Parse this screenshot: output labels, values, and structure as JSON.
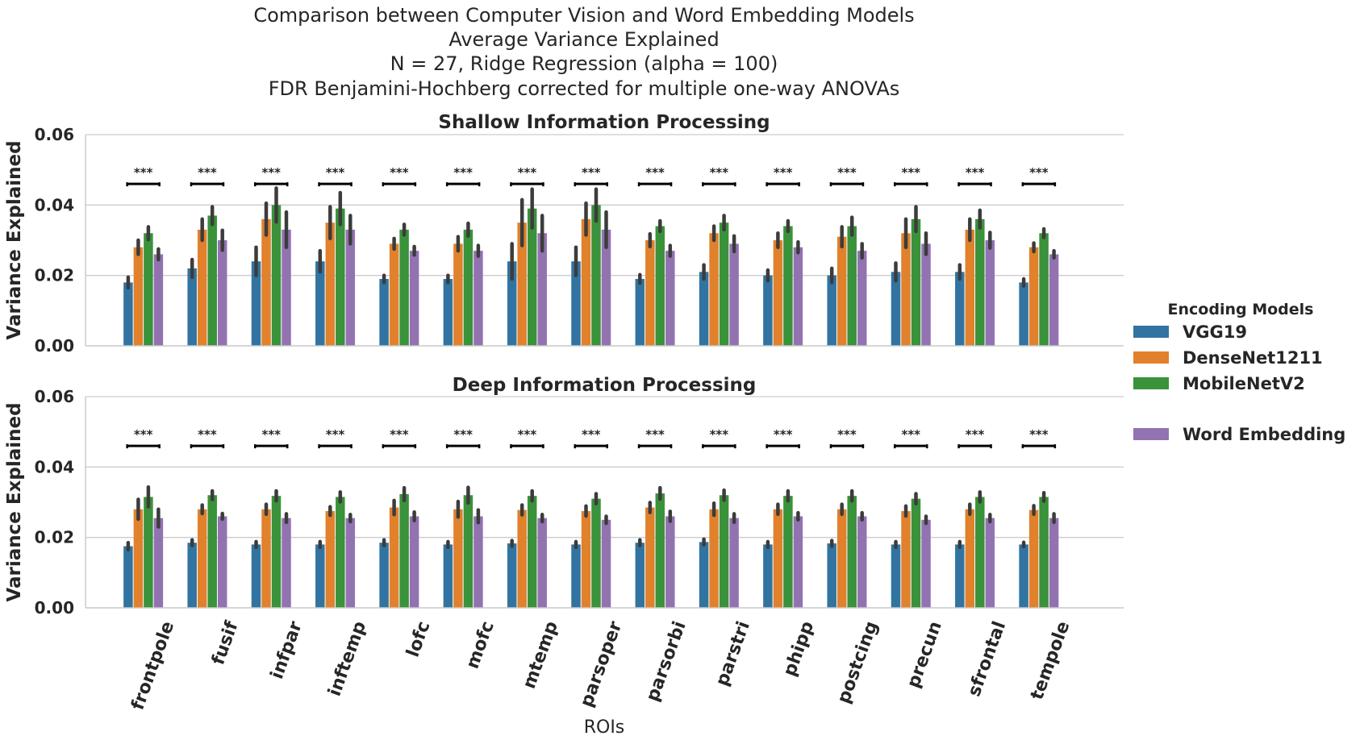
{
  "chart_data": {
    "type": "bar",
    "suptitle": [
      "Comparison between Computer Vision and Word Embedding Models",
      "Average Variance Explained",
      "N = 27, Ridge Regression (alpha = 100)",
      "FDR Benjamini-Hochberg corrected for multiple one-way ANOVAs"
    ],
    "xlabel": "ROIs",
    "ylabel": "Variance Explained",
    "ylim": [
      0,
      0.06
    ],
    "yticks": [
      "0.00",
      "0.02",
      "0.04",
      "0.06"
    ],
    "grid": true,
    "legend_placement": "right",
    "legend_title": "Encoding Models",
    "categories": [
      "frontpole",
      "fusif",
      "infpar",
      "inftemp",
      "lofc",
      "mofc",
      "mtemp",
      "parsoper",
      "parsorbi",
      "parstri",
      "phipp",
      "postcing",
      "precun",
      "sfrontal",
      "tempole"
    ],
    "series_names": [
      "VGG19",
      "DenseNet1211",
      "MobileNetV2",
      "Word Embedding"
    ],
    "series_colors": [
      "#3174a1",
      "#e1812c",
      "#3a923a",
      "#9372b2"
    ],
    "significance_label": "***",
    "significance_y": 0.046,
    "panels": [
      {
        "title": "Shallow Information Processing",
        "series": [
          {
            "name": "VGG19",
            "values": [
              0.018,
              0.022,
              0.024,
              0.024,
              0.019,
              0.019,
              0.024,
              0.024,
              0.019,
              0.021,
              0.02,
              0.02,
              0.021,
              0.021,
              0.018
            ],
            "err": [
              0.0015,
              0.0025,
              0.004,
              0.003,
              0.001,
              0.001,
              0.005,
              0.004,
              0.0012,
              0.002,
              0.0015,
              0.002,
              0.0025,
              0.002,
              0.001
            ]
          },
          {
            "name": "DenseNet1211",
            "values": [
              0.028,
              0.033,
              0.036,
              0.035,
              0.029,
              0.029,
              0.035,
              0.036,
              0.03,
              0.032,
              0.03,
              0.031,
              0.032,
              0.033,
              0.028
            ],
            "err": [
              0.002,
              0.003,
              0.0045,
              0.0045,
              0.0015,
              0.002,
              0.0065,
              0.0045,
              0.0018,
              0.002,
              0.002,
              0.0028,
              0.004,
              0.003,
              0.0012
            ]
          },
          {
            "name": "MobileNetV2",
            "values": [
              0.032,
              0.037,
              0.04,
              0.039,
              0.033,
              0.033,
              0.039,
              0.04,
              0.034,
              0.035,
              0.034,
              0.034,
              0.036,
              0.036,
              0.032
            ],
            "err": [
              0.0018,
              0.0025,
              0.0048,
              0.0045,
              0.0015,
              0.0018,
              0.0055,
              0.0045,
              0.0015,
              0.002,
              0.0015,
              0.0025,
              0.0035,
              0.0025,
              0.0012
            ]
          },
          {
            "name": "Word Embedding",
            "values": [
              0.026,
              0.03,
              0.033,
              0.033,
              0.027,
              0.027,
              0.032,
              0.033,
              0.027,
              0.029,
              0.028,
              0.027,
              0.029,
              0.03,
              0.026
            ],
            "err": [
              0.0015,
              0.0028,
              0.005,
              0.004,
              0.0012,
              0.0015,
              0.005,
              0.005,
              0.0015,
              0.0022,
              0.0015,
              0.002,
              0.003,
              0.0022,
              0.001
            ]
          }
        ]
      },
      {
        "title": "Deep Information Processing",
        "series": [
          {
            "name": "VGG19",
            "values": [
              0.0175,
              0.0185,
              0.018,
              0.018,
              0.0185,
              0.018,
              0.0183,
              0.018,
              0.0185,
              0.0187,
              0.018,
              0.0183,
              0.018,
              0.018,
              0.018
            ],
            "err": [
              0.001,
              0.0008,
              0.0008,
              0.0008,
              0.0008,
              0.0008,
              0.0008,
              0.0008,
              0.0008,
              0.0008,
              0.0008,
              0.0008,
              0.0008,
              0.0008,
              0.0006
            ]
          },
          {
            "name": "DenseNet1211",
            "values": [
              0.028,
              0.028,
              0.028,
              0.0275,
              0.0285,
              0.028,
              0.0278,
              0.0275,
              0.0285,
              0.028,
              0.028,
              0.028,
              0.0275,
              0.028,
              0.0278
            ],
            "err": [
              0.0028,
              0.0012,
              0.0014,
              0.0012,
              0.002,
              0.0022,
              0.0014,
              0.0014,
              0.0014,
              0.0017,
              0.0014,
              0.0014,
              0.0014,
              0.0014,
              0.0012
            ]
          },
          {
            "name": "MobileNetV2",
            "values": [
              0.0315,
              0.032,
              0.0318,
              0.0315,
              0.0323,
              0.032,
              0.0318,
              0.031,
              0.0325,
              0.032,
              0.0318,
              0.0318,
              0.031,
              0.0315,
              0.0315
            ],
            "err": [
              0.0028,
              0.0012,
              0.0014,
              0.0014,
              0.0018,
              0.0022,
              0.0014,
              0.0014,
              0.0016,
              0.0014,
              0.0014,
              0.0014,
              0.0014,
              0.0014,
              0.0012
            ]
          },
          {
            "name": "Word Embedding",
            "values": [
              0.0255,
              0.026,
              0.0255,
              0.0255,
              0.026,
              0.026,
              0.0255,
              0.025,
              0.026,
              0.0255,
              0.026,
              0.026,
              0.025,
              0.0255,
              0.0255
            ],
            "err": [
              0.0025,
              0.0008,
              0.0012,
              0.001,
              0.0012,
              0.0018,
              0.001,
              0.001,
              0.0014,
              0.0012,
              0.001,
              0.001,
              0.001,
              0.001,
              0.0012
            ]
          }
        ]
      }
    ]
  }
}
